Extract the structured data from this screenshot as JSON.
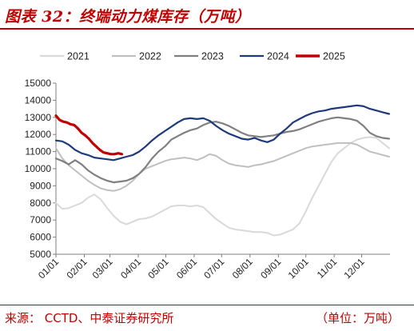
{
  "header": {
    "title": "图表 32：终端动力煤库存（万吨）"
  },
  "footer": {
    "source": "来源：  CCTD、中泰证券研究所",
    "unit": "（单位：万吨）"
  },
  "chart_data": {
    "type": "line",
    "title": "图表 32：终端动力煤库存（万吨）",
    "xlabel": "",
    "ylabel": "",
    "ylim": [
      5000,
      15000
    ],
    "yticks": [
      5000,
      6000,
      7000,
      8000,
      9000,
      10000,
      11000,
      12000,
      13000,
      14000,
      15000
    ],
    "xticks": [
      "01/01",
      "02/01",
      "03/01",
      "04/01",
      "05/01",
      "06/01",
      "07/01",
      "08/01",
      "09/01",
      "10/01",
      "11/01",
      "12/01"
    ],
    "x_range_days": [
      0,
      365
    ],
    "grid": false,
    "legend_position": "top",
    "series": [
      {
        "name": "2021",
        "color": "#d9d9d9",
        "width": 2,
        "x": [
          0,
          7,
          14,
          21,
          28,
          35,
          42,
          49,
          56,
          63,
          70,
          77,
          84,
          91,
          98,
          105,
          112,
          119,
          126,
          133,
          140,
          147,
          154,
          161,
          168,
          175,
          182,
          189,
          196,
          203,
          210,
          217,
          224,
          231,
          238,
          245,
          252,
          259,
          266,
          273,
          280,
          287,
          294,
          301,
          308,
          315,
          322,
          329,
          336,
          343,
          350,
          357,
          364
        ],
        "values": [
          8000,
          7650,
          7700,
          7850,
          8000,
          8300,
          8500,
          8200,
          7700,
          7250,
          6900,
          6750,
          6900,
          7050,
          7100,
          7200,
          7400,
          7600,
          7800,
          7850,
          7850,
          7800,
          7850,
          7750,
          7400,
          7050,
          6800,
          6550,
          6450,
          6400,
          6350,
          6300,
          6300,
          6250,
          6100,
          6150,
          6300,
          6450,
          6800,
          7500,
          8300,
          9000,
          9700,
          10400,
          10900,
          11200,
          11500,
          11700,
          11800,
          11850,
          11800,
          11500,
          11200
        ]
      },
      {
        "name": "2022",
        "color": "#bfbfbf",
        "width": 2,
        "x": [
          0,
          7,
          14,
          21,
          28,
          35,
          42,
          49,
          56,
          63,
          70,
          77,
          84,
          91,
          98,
          105,
          112,
          119,
          126,
          133,
          140,
          147,
          154,
          161,
          168,
          175,
          182,
          189,
          196,
          203,
          210,
          217,
          224,
          231,
          238,
          245,
          252,
          259,
          266,
          273,
          280,
          287,
          294,
          301,
          308,
          315,
          322,
          329,
          336,
          343,
          350,
          357,
          364
        ],
        "values": [
          11200,
          10600,
          10200,
          9900,
          9600,
          9300,
          9050,
          8850,
          8750,
          8700,
          8800,
          9000,
          9300,
          9700,
          10000,
          10150,
          10300,
          10450,
          10550,
          10600,
          10650,
          10600,
          10500,
          10650,
          10850,
          10750,
          10500,
          10300,
          10200,
          10150,
          10100,
          10200,
          10250,
          10350,
          10450,
          10600,
          10750,
          10900,
          11050,
          11200,
          11300,
          11350,
          11400,
          11450,
          11500,
          11500,
          11500,
          11400,
          11200,
          11000,
          10900,
          10800,
          10700
        ]
      },
      {
        "name": "2023",
        "color": "#808080",
        "width": 2.2,
        "x": [
          0,
          7,
          14,
          21,
          28,
          35,
          42,
          49,
          56,
          63,
          70,
          77,
          84,
          91,
          98,
          105,
          112,
          119,
          126,
          133,
          140,
          147,
          154,
          161,
          168,
          175,
          182,
          189,
          196,
          203,
          210,
          217,
          224,
          231,
          238,
          245,
          252,
          259,
          266,
          273,
          280,
          287,
          294,
          301,
          308,
          315,
          322,
          329,
          336,
          343,
          350,
          357,
          364
        ],
        "values": [
          10600,
          10450,
          10250,
          10500,
          10250,
          9900,
          9650,
          9450,
          9300,
          9200,
          9250,
          9300,
          9450,
          9700,
          10100,
          10600,
          11000,
          11300,
          11700,
          11900,
          12100,
          12250,
          12350,
          12550,
          12700,
          12750,
          12650,
          12500,
          12300,
          12100,
          11950,
          11900,
          11850,
          11900,
          11950,
          12050,
          12150,
          12200,
          12300,
          12450,
          12600,
          12750,
          12850,
          12950,
          13000,
          12950,
          12900,
          12800,
          12500,
          12100,
          11900,
          11800,
          11750
        ]
      },
      {
        "name": "2024",
        "color": "#1f3a7a",
        "width": 2.2,
        "x": [
          0,
          7,
          14,
          21,
          28,
          35,
          42,
          49,
          56,
          63,
          70,
          77,
          84,
          91,
          98,
          105,
          112,
          119,
          126,
          133,
          140,
          147,
          154,
          161,
          168,
          175,
          182,
          189,
          196,
          203,
          210,
          217,
          224,
          231,
          238,
          245,
          252,
          259,
          266,
          273,
          280,
          287,
          294,
          301,
          308,
          315,
          322,
          329,
          336,
          343,
          350,
          357,
          364
        ],
        "values": [
          11650,
          11600,
          11400,
          11100,
          10900,
          10800,
          10650,
          10600,
          10550,
          10500,
          10600,
          10700,
          10800,
          11000,
          11300,
          11650,
          11950,
          12200,
          12450,
          12700,
          12900,
          12950,
          12900,
          12950,
          12800,
          12500,
          12250,
          12050,
          11900,
          11750,
          11700,
          11800,
          11650,
          11550,
          11700,
          12050,
          12350,
          12700,
          12900,
          13100,
          13250,
          13350,
          13400,
          13500,
          13550,
          13600,
          13650,
          13700,
          13650,
          13500,
          13400,
          13300,
          13200
        ]
      },
      {
        "name": "2025",
        "color": "#c00000",
        "width": 3.2,
        "x": [
          0,
          4,
          8,
          12,
          16,
          20,
          24,
          28,
          32,
          36,
          40,
          44,
          48,
          52,
          56,
          60,
          64,
          68,
          72
        ],
        "values": [
          13100,
          12850,
          12750,
          12700,
          12600,
          12550,
          12350,
          12100,
          11950,
          11750,
          11500,
          11300,
          11100,
          10950,
          10900,
          10850,
          10850,
          10900,
          10850
        ]
      }
    ]
  }
}
